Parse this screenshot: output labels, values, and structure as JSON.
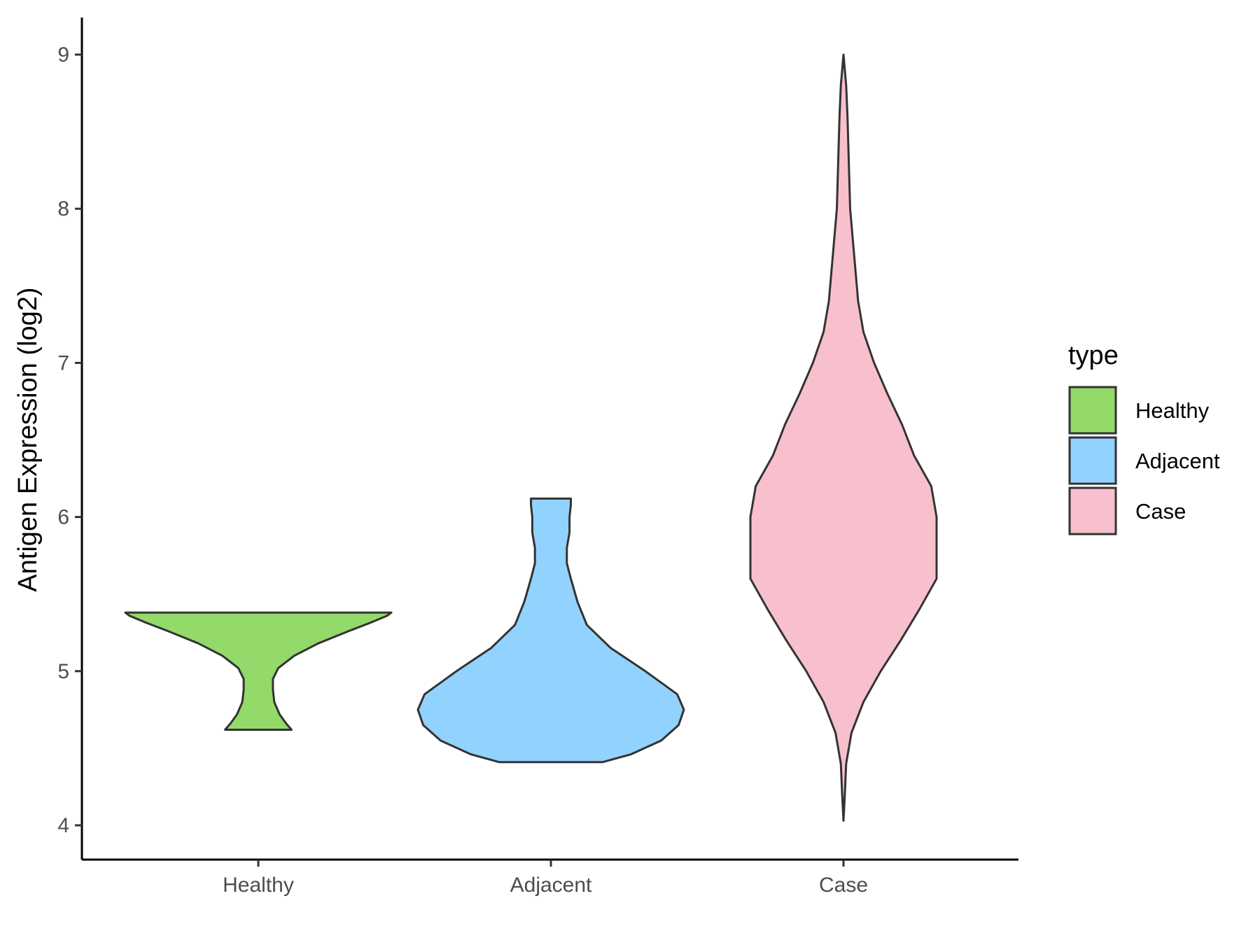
{
  "chart_data": {
    "type": "violin",
    "xlabel": "",
    "ylabel": "Antigen Expression (log2)",
    "ylim": [
      3.75,
      9.25
    ],
    "yticks": [
      "4",
      "5",
      "6",
      "7",
      "8",
      "9"
    ],
    "categories": [
      "Healthy",
      "Adjacent",
      "Case"
    ],
    "grid": false,
    "legend": {
      "title": "type",
      "position": "right",
      "entries": [
        "Healthy",
        "Adjacent",
        "Case"
      ]
    },
    "series": [
      {
        "name": "Healthy",
        "color": "#93DA6A",
        "min": 4.62,
        "max": 5.38,
        "profile": [
          [
            4.62,
            0.25
          ],
          [
            4.66,
            0.21
          ],
          [
            4.72,
            0.16
          ],
          [
            4.8,
            0.12
          ],
          [
            4.88,
            0.11
          ],
          [
            4.95,
            0.11
          ],
          [
            5.02,
            0.15
          ],
          [
            5.1,
            0.27
          ],
          [
            5.18,
            0.45
          ],
          [
            5.26,
            0.68
          ],
          [
            5.32,
            0.86
          ],
          [
            5.36,
            0.97
          ],
          [
            5.38,
            1.0
          ]
        ]
      },
      {
        "name": "Adjacent",
        "color": "#92D2FF",
        "min": 4.41,
        "max": 6.12,
        "profile": [
          [
            4.41,
            0.39
          ],
          [
            4.46,
            0.6
          ],
          [
            4.55,
            0.83
          ],
          [
            4.65,
            0.96
          ],
          [
            4.75,
            1.0
          ],
          [
            4.85,
            0.95
          ],
          [
            5.0,
            0.71
          ],
          [
            5.15,
            0.45
          ],
          [
            5.3,
            0.27
          ],
          [
            5.45,
            0.2
          ],
          [
            5.6,
            0.15
          ],
          [
            5.7,
            0.12
          ],
          [
            5.8,
            0.12
          ],
          [
            5.9,
            0.14
          ],
          [
            6.0,
            0.14
          ],
          [
            6.08,
            0.15
          ],
          [
            6.12,
            0.15
          ]
        ]
      },
      {
        "name": "Case",
        "color": "#F7C0CC",
        "min": 4.03,
        "max": 9.0,
        "profile": [
          [
            4.03,
            0.0
          ],
          [
            4.2,
            0.01
          ],
          [
            4.4,
            0.02
          ],
          [
            4.6,
            0.06
          ],
          [
            4.8,
            0.15
          ],
          [
            5.0,
            0.28
          ],
          [
            5.2,
            0.43
          ],
          [
            5.4,
            0.57
          ],
          [
            5.6,
            0.7
          ],
          [
            5.8,
            0.7
          ],
          [
            6.0,
            0.7
          ],
          [
            6.2,
            0.66
          ],
          [
            6.4,
            0.53
          ],
          [
            6.6,
            0.44
          ],
          [
            6.8,
            0.33
          ],
          [
            7.0,
            0.23
          ],
          [
            7.2,
            0.15
          ],
          [
            7.4,
            0.11
          ],
          [
            7.6,
            0.09
          ],
          [
            7.8,
            0.07
          ],
          [
            8.0,
            0.05
          ],
          [
            8.3,
            0.04
          ],
          [
            8.6,
            0.03
          ],
          [
            8.8,
            0.02
          ],
          [
            9.0,
            0.0
          ]
        ]
      }
    ]
  }
}
